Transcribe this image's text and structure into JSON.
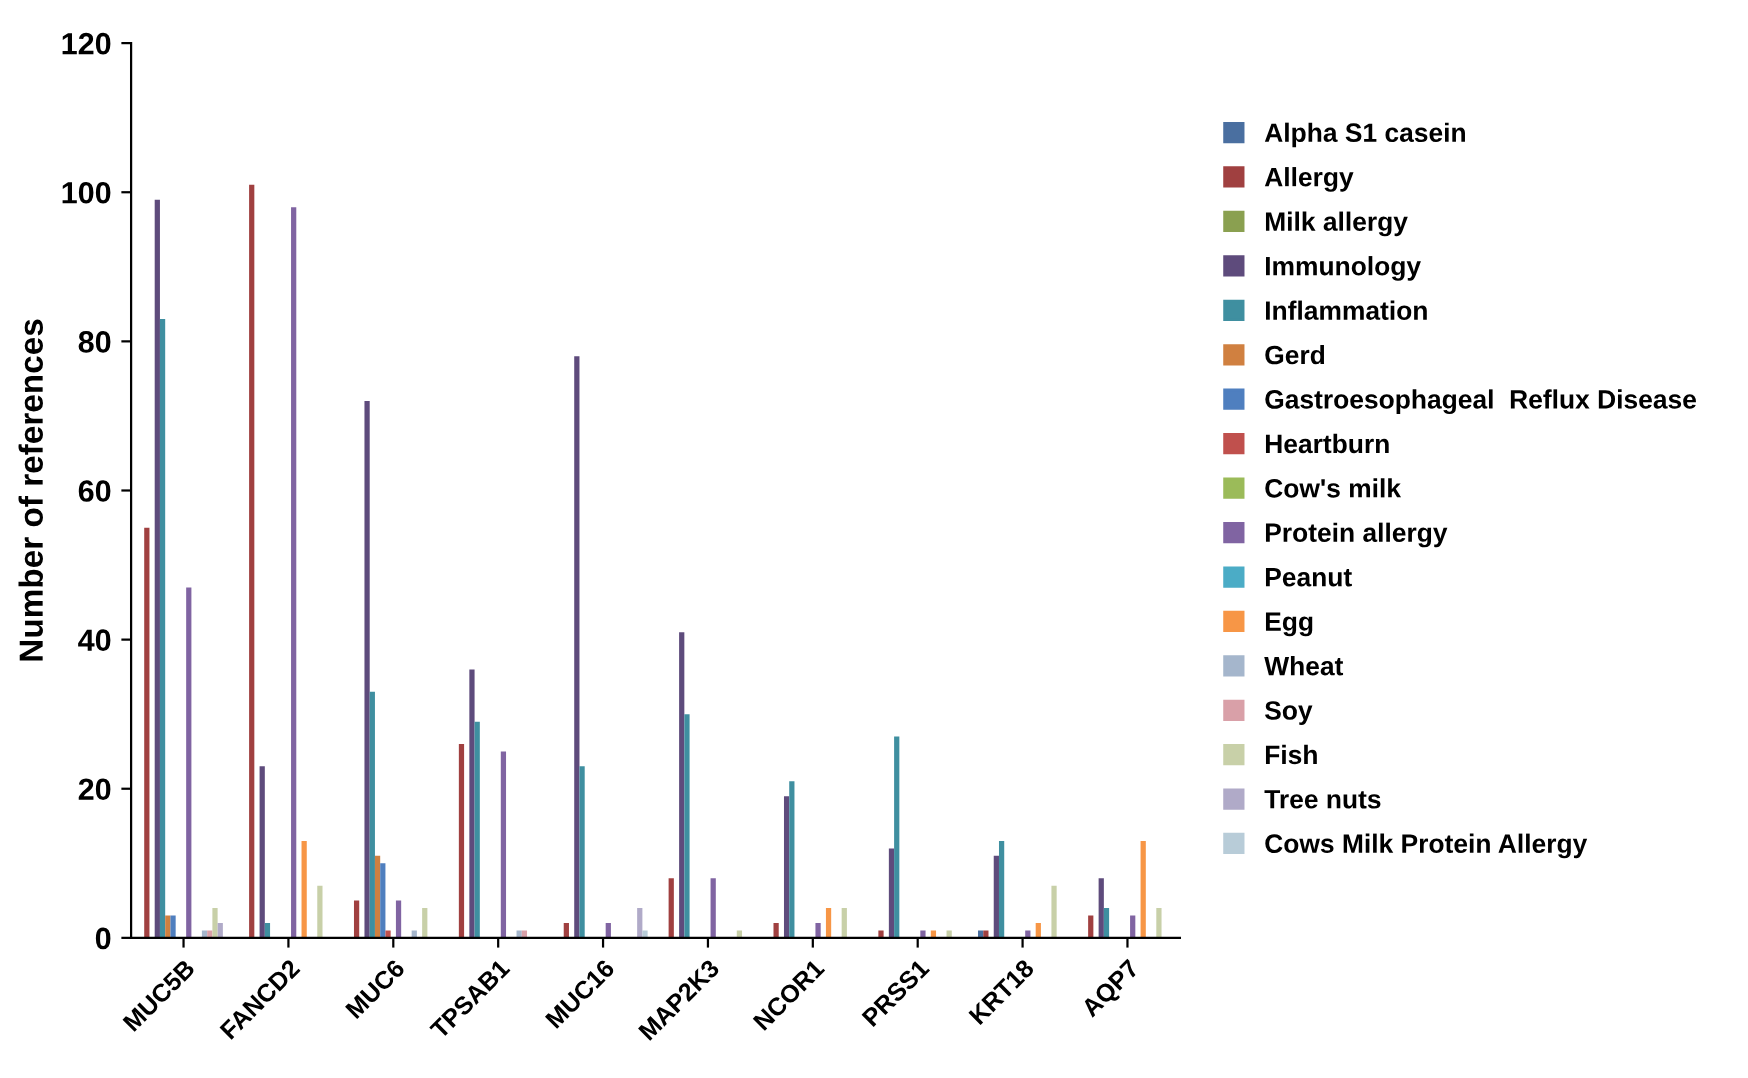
{
  "chart_data": {
    "type": "bar",
    "ylabel": "Number of references",
    "categories": [
      "MUC5B",
      "FANCD2",
      "MUC6",
      "TPSAB1",
      "MUC16",
      "MAP2K3",
      "NCOR1",
      "PRSS1",
      "KRT18",
      "AQP7"
    ],
    "ylim": [
      0,
      120
    ],
    "yticks": [
      0,
      20,
      40,
      60,
      80,
      100,
      120
    ],
    "grid": false,
    "legend": "right",
    "series": [
      {
        "name": "Alpha S1 casein",
        "color": "#4a6fa0",
        "values": [
          0,
          0,
          0,
          0,
          0,
          0,
          0,
          0,
          1,
          0
        ]
      },
      {
        "name": "Allergy",
        "color": "#a04040",
        "values": [
          55,
          101,
          5,
          26,
          2,
          8,
          2,
          1,
          1,
          3
        ]
      },
      {
        "name": "Milk allergy",
        "color": "#8aa050",
        "values": [
          0,
          0,
          0,
          0,
          0,
          0,
          0,
          0,
          0,
          0
        ]
      },
      {
        "name": "Immunology",
        "color": "#5e4b7c",
        "values": [
          99,
          23,
          72,
          36,
          78,
          41,
          19,
          12,
          11,
          8
        ]
      },
      {
        "name": "Inflammation",
        "color": "#3f8fa0",
        "values": [
          83,
          2,
          33,
          29,
          23,
          30,
          21,
          27,
          13,
          4
        ]
      },
      {
        "name": "Gerd",
        "color": "#d08040",
        "values": [
          3,
          0,
          11,
          0,
          0,
          0,
          0,
          0,
          0,
          0
        ]
      },
      {
        "name": "Gastroesophageal  Reflux Disease",
        "color": "#4f7fbf",
        "values": [
          3,
          0,
          10,
          0,
          0,
          0,
          0,
          0,
          0,
          0
        ]
      },
      {
        "name": "Heartburn",
        "color": "#c0504d",
        "values": [
          0,
          0,
          1,
          0,
          0,
          0,
          0,
          0,
          0,
          0
        ]
      },
      {
        "name": "Cow's milk",
        "color": "#9bbb59",
        "values": [
          0,
          0,
          0,
          0,
          0,
          0,
          0,
          0,
          0,
          0
        ]
      },
      {
        "name": "Protein allergy",
        "color": "#8064a2",
        "values": [
          47,
          98,
          5,
          25,
          2,
          8,
          2,
          1,
          1,
          3
        ]
      },
      {
        "name": "Peanut",
        "color": "#4bacc6",
        "values": [
          0,
          0,
          0,
          0,
          0,
          0,
          0,
          0,
          0,
          0
        ]
      },
      {
        "name": "Egg",
        "color": "#f79646",
        "values": [
          0,
          13,
          0,
          0,
          0,
          0,
          4,
          1,
          2,
          13
        ]
      },
      {
        "name": "Wheat",
        "color": "#a5b6cc",
        "values": [
          1,
          0,
          1,
          1,
          0,
          0,
          0,
          0,
          0,
          0
        ]
      },
      {
        "name": "Soy",
        "color": "#d9a0a8",
        "values": [
          1,
          0,
          0,
          1,
          0,
          0,
          0,
          0,
          0,
          0
        ]
      },
      {
        "name": "Fish",
        "color": "#c8d0a8",
        "values": [
          4,
          7,
          4,
          0,
          0,
          1,
          4,
          1,
          7,
          4
        ]
      },
      {
        "name": "Tree nuts",
        "color": "#b0aac8",
        "values": [
          2,
          0,
          0,
          0,
          4,
          0,
          0,
          0,
          0,
          0
        ]
      },
      {
        "name": "Cows Milk Protein Allergy",
        "color": "#b8ccd8",
        "values": [
          0,
          0,
          0,
          0,
          1,
          0,
          0,
          0,
          0,
          0
        ]
      }
    ]
  }
}
